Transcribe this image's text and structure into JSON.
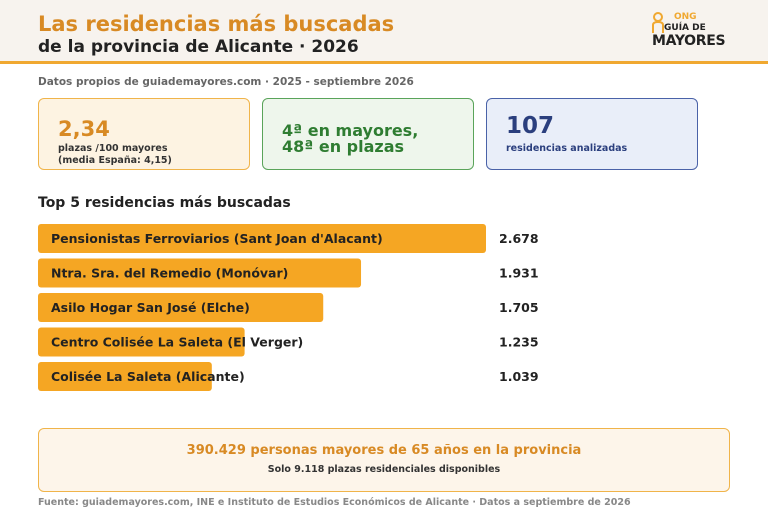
{
  "header": {
    "title_line1": "Las residencias más buscadas",
    "title_line2": "de la provincia de Alicante · 2026",
    "logo": {
      "ong": "ONG",
      "guia": "GUÍA DE",
      "mayores": "MAYORES",
      "icon": "elderly-person-icon"
    }
  },
  "subtitle": "Datos propios de guiademayores.com · 2025 - septiembre 2026",
  "kpis": {
    "plazas": {
      "value": "2,34",
      "label1": "plazas /100 mayores",
      "label2": "(media España: 4,15)"
    },
    "ranking": {
      "line1": "4ª en mayores,",
      "line2": "48ª en plazas"
    },
    "residencias": {
      "value": "107",
      "label": "residencias analizadas"
    }
  },
  "section_title": "Top 5 residencias más buscadas",
  "chart_data": {
    "type": "bar",
    "orientation": "horizontal",
    "title": "Top 5 residencias más buscadas",
    "categories": [
      "Pensionistas Ferroviarios (Sant Joan d'Alacant)",
      "Ntra. Sra. del Remedio (Monóvar)",
      "Asilo Hogar San José (Elche)",
      "Centro Colisée La Saleta (El Verger)",
      "Colisée La Saleta (Alicante)"
    ],
    "values": [
      2678,
      1931,
      1705,
      1235,
      1039
    ],
    "value_labels": [
      "2.678",
      "1.931",
      "1.705",
      "1.235",
      "1.039"
    ],
    "xlim": [
      0,
      2678
    ],
    "bar_color": "#f5a623",
    "grid": false
  },
  "footer": {
    "main": "390.429 personas mayores de 65 años en la provincia",
    "sub": "Solo 9.118 plazas residenciales disponibles"
  },
  "source": "Fuente: guiademayores.com, INE e Instituto de Estudios Económicos de Alicante · Datos a septiembre de 2026",
  "colors": {
    "accent": "#f0a830",
    "title_orange": "#d88a24",
    "green": "#2f7d32",
    "navy": "#2b3f7e"
  }
}
